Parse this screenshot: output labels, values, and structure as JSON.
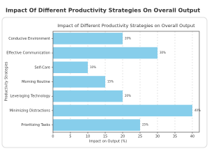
{
  "header": {
    "title": "Impact Of Different Productivity Strategies On Overall Output"
  },
  "chart_data": {
    "type": "barh",
    "title": "Impact of Different Productivity Strategies on Overall Output",
    "xlabel": "Impact on Output (%)",
    "ylabel": "Productivity Strategies",
    "categories": [
      "Conducive Environment",
      "Effective Communication",
      "Self-Care",
      "Morning Routine",
      "Leveraging Technology",
      "Minimizing Distractions",
      "Prioritizing Tasks"
    ],
    "values": [
      20,
      30,
      10,
      15,
      20,
      40,
      25
    ],
    "value_labels": [
      "20%",
      "30%",
      "10%",
      "15%",
      "20%",
      "40%",
      "25%"
    ],
    "color": "#87ceeb",
    "xlim": [
      0,
      42
    ],
    "xticks": [
      0,
      5,
      10,
      15,
      20,
      25,
      30,
      35,
      40
    ],
    "grid": true
  }
}
